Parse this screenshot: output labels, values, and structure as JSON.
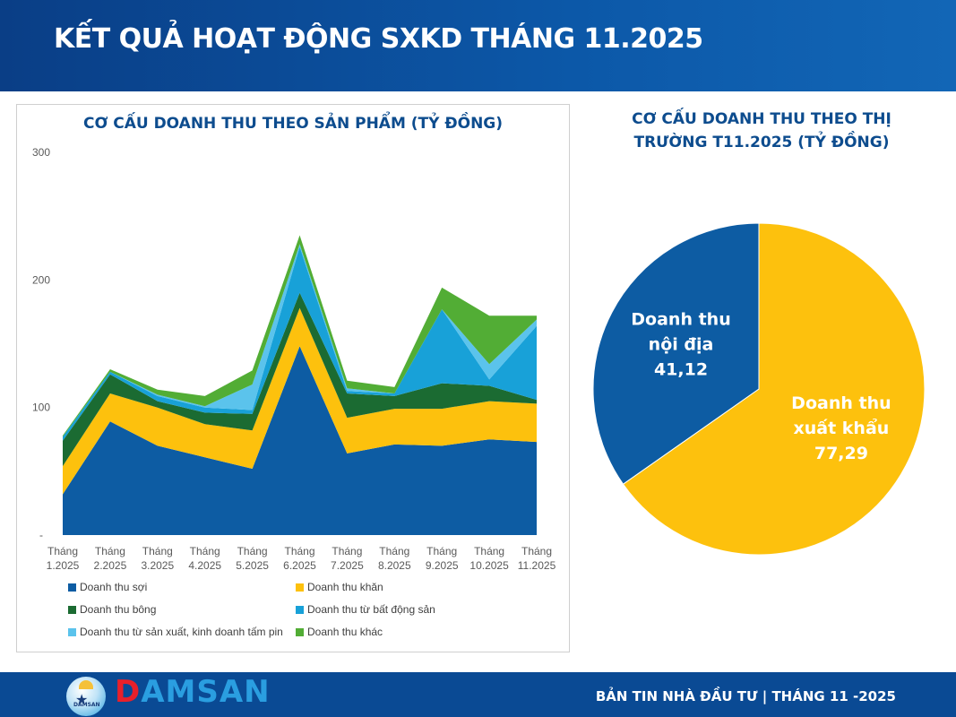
{
  "header": {
    "title": "KẾT QUẢ HOẠT ĐỘNG SXKD THÁNG 11.2025"
  },
  "footer": {
    "brand": "DAMSAN",
    "brand_first": "D",
    "brand_rest": "AMSAN",
    "bulletin": "BẢN TIN NHÀ ĐẦU TƯ  |  THÁNG 11 -2025",
    "logo_text": "DAMSAN"
  },
  "colors": {
    "header": "#0c58a8",
    "soi": "#0d5ca3",
    "khan": "#fdc10d",
    "bong": "#1b6b32",
    "bds": "#18a1d8",
    "pin": "#5bc3ec",
    "khac": "#52ad35",
    "pie_noi_dia": "#0d5ca3",
    "pie_xuat_khau": "#fdc10d"
  },
  "chart_data": [
    {
      "type": "area",
      "stacked": true,
      "title": "CƠ CẤU DOANH THU THEO SẢN PHẨM (TỶ ĐỒNG)",
      "categories_line1": [
        "Tháng",
        "Tháng",
        "Tháng",
        "Tháng",
        "Tháng",
        "Tháng",
        "Tháng",
        "Tháng",
        "Tháng",
        "Tháng",
        "Tháng"
      ],
      "categories_line2": [
        "1.2025",
        "2.2025",
        "3.2025",
        "4.2025",
        "5.2025",
        "6.2025",
        "7.2025",
        "8.2025",
        "9.2025",
        "10.2025",
        "11.2025"
      ],
      "y_ticks": [
        "-",
        "100",
        "200",
        "300"
      ],
      "ylim": [
        0,
        300
      ],
      "legend_position": "bottom",
      "series": [
        {
          "name": "Doanh thu sợi",
          "color_key": "soi",
          "values": [
            32,
            89,
            70,
            61,
            52,
            148,
            64,
            71,
            70,
            75,
            73
          ]
        },
        {
          "name": "Doanh thu khăn",
          "color_key": "khan",
          "values": [
            22,
            22,
            30,
            26,
            30,
            30,
            28,
            28,
            29,
            30,
            30
          ]
        },
        {
          "name": "Doanh thu bông",
          "color_key": "bong",
          "values": [
            20,
            15,
            5,
            9,
            13,
            12,
            19,
            10,
            20,
            12,
            3
          ]
        },
        {
          "name": "Doanh thu từ bất động sản",
          "color_key": "bds",
          "values": [
            3,
            2,
            4,
            4,
            3,
            36,
            2,
            2,
            58,
            5,
            58
          ]
        },
        {
          "name": "Doanh thu từ sản xuất, kinh doanh tấm pin",
          "color_key": "pin",
          "values": [
            0,
            0,
            1,
            1,
            20,
            2,
            2,
            0,
            0,
            12,
            5
          ]
        },
        {
          "name": "Doanh thu khác",
          "color_key": "khac",
          "values": [
            1,
            2,
            4,
            8,
            11,
            7,
            6,
            5,
            17,
            38,
            3
          ]
        }
      ]
    },
    {
      "type": "pie",
      "title_line1": "CƠ CẤU DOANH THU THEO THỊ",
      "title_line2": "TRƯỜNG T11.2025 (TỶ ĐỒNG)",
      "slices": [
        {
          "label_line1": "Doanh thu",
          "label_line2": "xuất khẩu",
          "value": 77.29,
          "value_label": "77,29",
          "color_key": "pie_xuat_khau"
        },
        {
          "label_line1": "Doanh thu",
          "label_line2": "nội địa",
          "value": 41.12,
          "value_label": "41,12",
          "color_key": "pie_noi_dia"
        }
      ]
    }
  ]
}
